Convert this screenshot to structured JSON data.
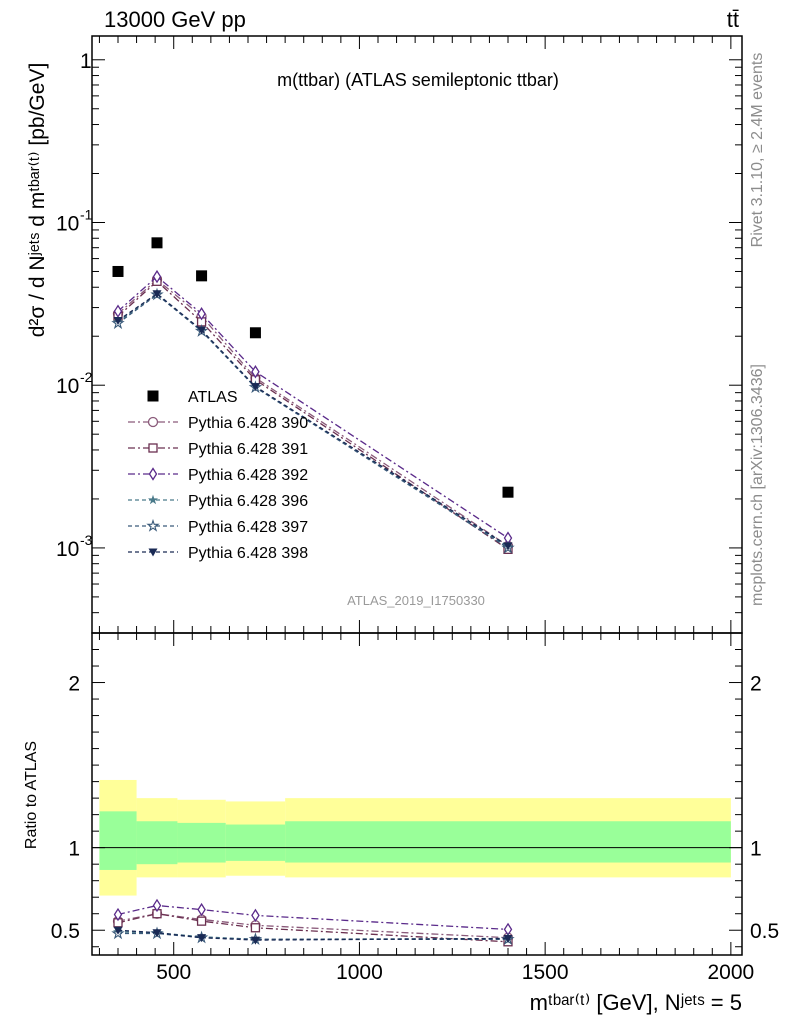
{
  "header": {
    "left": "13000 GeV pp",
    "right": "tt̄"
  },
  "side": {
    "rivet": "Rivet 3.1.10, ≥ 2.4M events",
    "mcplots": "mcplots.cern.ch [arXiv:1306.3436]"
  },
  "chart_data": [
    {
      "type": "scatter",
      "title": "m(ttbar) (ATLAS semileptonic ttbar)",
      "watermark": "ATLAS_2019_I1750330",
      "ylabel": "d²σ / d Nʲᵉᵗˢ d mᵗᵇᵃʳ⁽ᵗ⁾ [pb/GeV]",
      "yscale": "log",
      "ylim": [
        0.0003,
        1.4
      ],
      "xlim": [
        280,
        2030
      ],
      "yticks": [
        {
          "v": 0.001,
          "label": "10",
          "exp": "-3"
        },
        {
          "v": 0.01,
          "label": "10",
          "exp": "-2"
        },
        {
          "v": 0.1,
          "label": "10",
          "exp": "-1"
        },
        {
          "v": 1,
          "label": "1",
          "exp": ""
        }
      ],
      "legend": "left",
      "series": [
        {
          "name": "ATLAS",
          "x": [
            350,
            455,
            575,
            720,
            1400
          ],
          "y": [
            0.05,
            0.075,
            0.047,
            0.021,
            0.0022
          ],
          "color": "#000000",
          "marker": "square-filled",
          "dash": ""
        },
        {
          "name": "Pythia 6.428 390",
          "x": [
            350,
            455,
            575,
            720,
            1400
          ],
          "y": [
            0.0275,
            0.0445,
            0.0265,
            0.0111,
            0.00103
          ],
          "color": "#8a5a7a",
          "marker": "circle-open",
          "dash": "7,3,2,3"
        },
        {
          "name": "Pythia 6.428 391",
          "x": [
            350,
            455,
            575,
            720,
            1400
          ],
          "y": [
            0.0265,
            0.0435,
            0.0245,
            0.0108,
            0.00098
          ],
          "color": "#6b3050",
          "marker": "square-open",
          "dash": "7,3,2,3"
        },
        {
          "name": "Pythia 6.428 392",
          "x": [
            350,
            455,
            575,
            720,
            1400
          ],
          "y": [
            0.0285,
            0.0465,
            0.0275,
            0.0121,
            0.00115
          ],
          "color": "#5a2a8a",
          "marker": "diamond-open",
          "dash": "7,3,2,3"
        },
        {
          "name": "Pythia 6.428 396",
          "x": [
            350,
            455,
            575,
            720,
            1400
          ],
          "y": [
            0.0245,
            0.0363,
            0.0215,
            0.0097,
            0.00102
          ],
          "color": "#4a7a8a",
          "marker": "star-filled",
          "dash": "4,3"
        },
        {
          "name": "Pythia 6.428 397",
          "x": [
            350,
            455,
            575,
            720,
            1400
          ],
          "y": [
            0.024,
            0.036,
            0.0215,
            0.0097,
            0.001
          ],
          "color": "#3a5a7a",
          "marker": "star-open",
          "dash": "4,3"
        },
        {
          "name": "Pythia 6.428 398",
          "x": [
            350,
            455,
            575,
            720,
            1400
          ],
          "y": [
            0.025,
            0.0365,
            0.0218,
            0.0098,
            0.00103
          ],
          "color": "#1a2a55",
          "marker": "triangle-down-filled",
          "dash": "4,3"
        }
      ]
    },
    {
      "type": "scatter",
      "ylabel": "Ratio to ATLAS",
      "xlabel": "mᵗᵇᵃʳ⁽ᵗ⁾ [GeV], Nʲᵉᵗˢ = 5",
      "ylim": [
        0.35,
        2.3
      ],
      "xlim": [
        280,
        2030
      ],
      "xticks": [
        500,
        1000,
        1500,
        2000
      ],
      "yticks": [
        0.5,
        1,
        2
      ],
      "bands": [
        {
          "x0": 300,
          "x1": 400,
          "inner": [
            0.865,
            1.22
          ],
          "outer": [
            0.71,
            1.41
          ]
        },
        {
          "x0": 400,
          "x1": 510,
          "inner": [
            0.9,
            1.16
          ],
          "outer": [
            0.82,
            1.3
          ]
        },
        {
          "x0": 510,
          "x1": 640,
          "inner": [
            0.91,
            1.15
          ],
          "outer": [
            0.82,
            1.29
          ]
        },
        {
          "x0": 640,
          "x1": 800,
          "inner": [
            0.92,
            1.14
          ],
          "outer": [
            0.83,
            1.28
          ]
        },
        {
          "x0": 800,
          "x1": 2000,
          "inner": [
            0.91,
            1.16
          ],
          "outer": [
            0.82,
            1.3
          ]
        }
      ],
      "series": [
        {
          "name": "Pythia 6.428 390",
          "x": [
            350,
            455,
            575,
            720,
            1400
          ],
          "y": [
            0.555,
            0.6,
            0.565,
            0.53,
            0.455
          ],
          "color": "#8a5a7a",
          "marker": "circle-open",
          "dash": "7,3,2,3"
        },
        {
          "name": "Pythia 6.428 391",
          "x": [
            350,
            455,
            575,
            720,
            1400
          ],
          "y": [
            0.545,
            0.6,
            0.555,
            0.515,
            0.43
          ],
          "color": "#6b3050",
          "marker": "square-open",
          "dash": "7,3,2,3"
        },
        {
          "name": "Pythia 6.428 392",
          "x": [
            350,
            455,
            575,
            720,
            1400
          ],
          "y": [
            0.595,
            0.65,
            0.625,
            0.59,
            0.505
          ],
          "color": "#5a2a8a",
          "marker": "diamond-open",
          "dash": "7,3,2,3"
        },
        {
          "name": "Pythia 6.428 396",
          "x": [
            350,
            455,
            575,
            720,
            1400
          ],
          "y": [
            0.49,
            0.485,
            0.46,
            0.445,
            0.45
          ],
          "color": "#4a7a8a",
          "marker": "star-filled",
          "dash": "4,3"
        },
        {
          "name": "Pythia 6.428 397",
          "x": [
            350,
            455,
            575,
            720,
            1400
          ],
          "y": [
            0.48,
            0.48,
            0.455,
            0.445,
            0.445
          ],
          "color": "#3a5a7a",
          "marker": "star-open",
          "dash": "4,3"
        },
        {
          "name": "Pythia 6.428 398",
          "x": [
            350,
            455,
            575,
            720,
            1400
          ],
          "y": [
            0.5,
            0.485,
            0.455,
            0.44,
            0.45
          ],
          "color": "#1a2a55",
          "marker": "triangle-down-filled",
          "dash": "4,3"
        }
      ]
    }
  ]
}
